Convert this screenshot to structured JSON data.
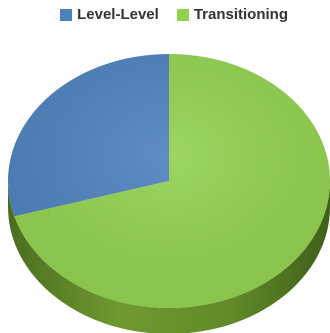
{
  "chart_data": {
    "type": "pie",
    "title": "",
    "legend_position": "top-right",
    "style": "3d",
    "series": [
      {
        "slices": [
          {
            "label": "Level-Level",
            "value": 29.5,
            "color": "#4f81bd"
          },
          {
            "label": "Transitioning",
            "value": 70.5,
            "color": "#92d050"
          }
        ]
      }
    ]
  }
}
